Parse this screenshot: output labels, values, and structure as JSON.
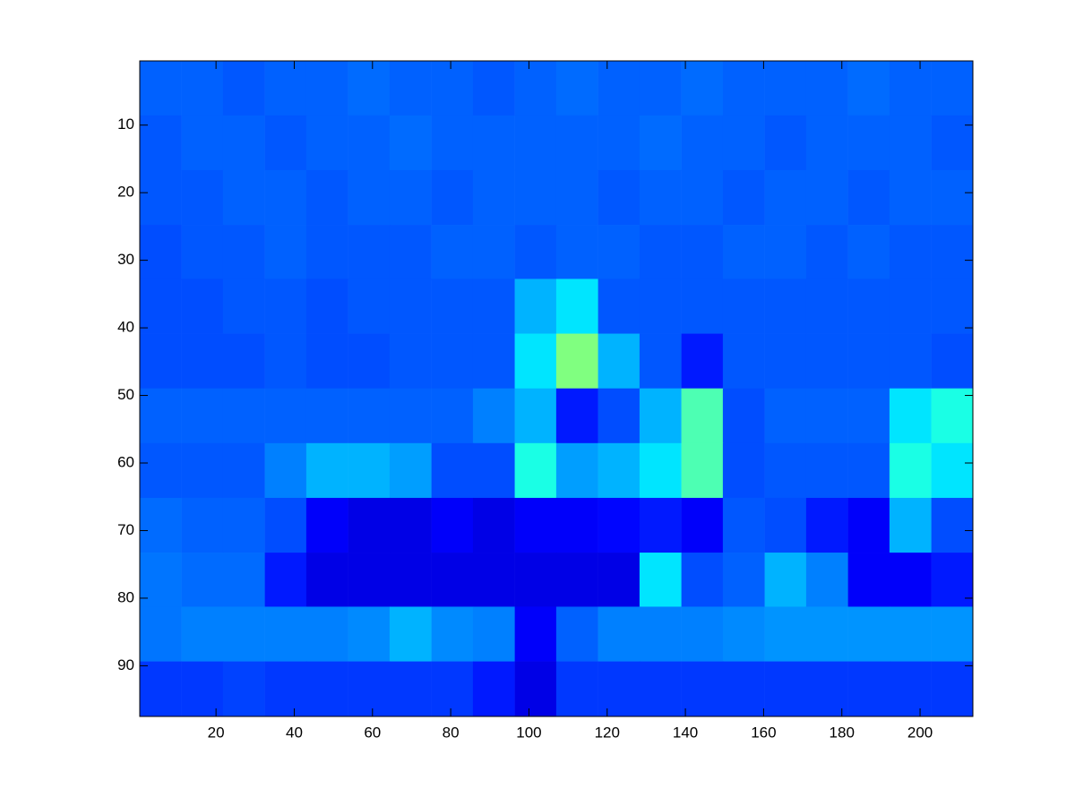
{
  "chart_data": {
    "type": "heatmap",
    "x": [
      5.8,
      16.5,
      27.1,
      37.8,
      48.4,
      59.1,
      69.7,
      80.4,
      91.0,
      101.7,
      112.3,
      123.0,
      133.6,
      144.3,
      154.9,
      165.6,
      176.2,
      186.9,
      197.5,
      208.2
    ],
    "y": [
      4.5,
      12.6,
      20.7,
      28.8,
      36.8,
      44.9,
      53.0,
      61.1,
      69.2,
      77.3,
      85.3,
      93.4
    ],
    "z": [
      [
        0.22,
        0.22,
        0.21,
        0.22,
        0.22,
        0.23,
        0.22,
        0.22,
        0.21,
        0.22,
        0.23,
        0.22,
        0.22,
        0.23,
        0.22,
        0.22,
        0.22,
        0.23,
        0.22,
        0.22
      ],
      [
        0.21,
        0.22,
        0.22,
        0.21,
        0.22,
        0.22,
        0.23,
        0.22,
        0.22,
        0.22,
        0.22,
        0.22,
        0.23,
        0.22,
        0.22,
        0.21,
        0.22,
        0.22,
        0.22,
        0.21
      ],
      [
        0.21,
        0.21,
        0.22,
        0.22,
        0.21,
        0.22,
        0.22,
        0.21,
        0.22,
        0.22,
        0.22,
        0.21,
        0.22,
        0.22,
        0.21,
        0.22,
        0.22,
        0.21,
        0.22,
        0.22
      ],
      [
        0.2,
        0.21,
        0.21,
        0.22,
        0.21,
        0.21,
        0.21,
        0.22,
        0.22,
        0.21,
        0.22,
        0.22,
        0.21,
        0.21,
        0.22,
        0.22,
        0.21,
        0.22,
        0.21,
        0.21
      ],
      [
        0.2,
        0.2,
        0.21,
        0.21,
        0.2,
        0.21,
        0.21,
        0.21,
        0.21,
        0.3,
        0.35,
        0.21,
        0.21,
        0.21,
        0.21,
        0.21,
        0.21,
        0.21,
        0.21,
        0.21
      ],
      [
        0.2,
        0.2,
        0.2,
        0.21,
        0.2,
        0.2,
        0.21,
        0.21,
        0.21,
        0.35,
        0.5,
        0.3,
        0.21,
        0.15,
        0.21,
        0.21,
        0.21,
        0.21,
        0.21,
        0.2
      ],
      [
        0.22,
        0.22,
        0.22,
        0.22,
        0.22,
        0.22,
        0.22,
        0.22,
        0.25,
        0.3,
        0.15,
        0.2,
        0.3,
        0.45,
        0.2,
        0.22,
        0.22,
        0.22,
        0.35,
        0.4
      ],
      [
        0.21,
        0.21,
        0.21,
        0.25,
        0.3,
        0.3,
        0.28,
        0.2,
        0.2,
        0.4,
        0.28,
        0.3,
        0.35,
        0.45,
        0.2,
        0.21,
        0.21,
        0.21,
        0.4,
        0.35
      ],
      [
        0.23,
        0.22,
        0.22,
        0.2,
        0.12,
        0.1,
        0.1,
        0.12,
        0.1,
        0.12,
        0.12,
        0.13,
        0.15,
        0.12,
        0.21,
        0.2,
        0.15,
        0.12,
        0.3,
        0.2
      ],
      [
        0.24,
        0.23,
        0.23,
        0.15,
        0.1,
        0.1,
        0.1,
        0.1,
        0.1,
        0.1,
        0.1,
        0.1,
        0.35,
        0.2,
        0.22,
        0.3,
        0.25,
        0.12,
        0.12,
        0.15
      ],
      [
        0.24,
        0.25,
        0.25,
        0.25,
        0.25,
        0.26,
        0.3,
        0.26,
        0.25,
        0.12,
        0.22,
        0.25,
        0.25,
        0.25,
        0.26,
        0.27,
        0.27,
        0.27,
        0.27,
        0.27
      ],
      [
        0.18,
        0.18,
        0.19,
        0.18,
        0.18,
        0.18,
        0.18,
        0.18,
        0.15,
        0.1,
        0.18,
        0.18,
        0.18,
        0.18,
        0.18,
        0.18,
        0.18,
        0.18,
        0.18,
        0.18
      ]
    ],
    "clim": [
      0,
      1
    ],
    "xlim": [
      0.5,
      213.5
    ],
    "ylim": [
      0.5,
      97.5
    ],
    "y_reversed": true,
    "xticks": [
      20,
      40,
      60,
      80,
      100,
      120,
      140,
      160,
      180,
      200
    ],
    "yticks": [
      10,
      20,
      30,
      40,
      50,
      60,
      70,
      80,
      90
    ]
  }
}
